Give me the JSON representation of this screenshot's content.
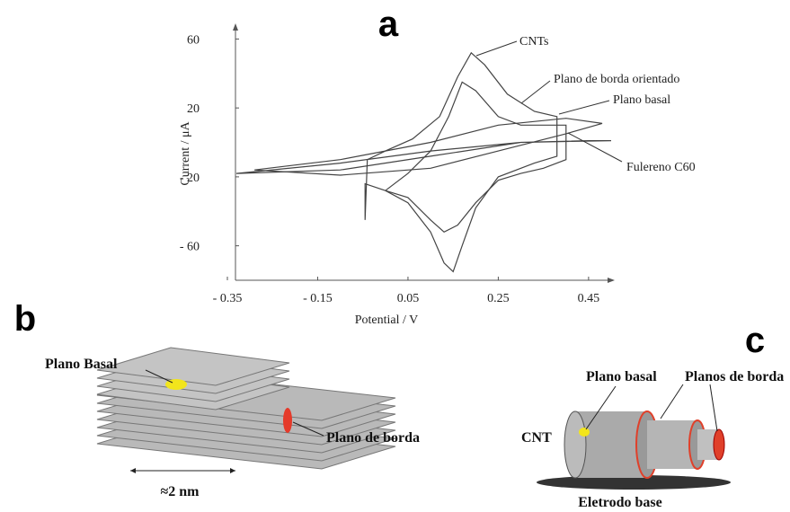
{
  "panel_labels": [
    "a",
    "b",
    "c"
  ],
  "chart_data": {
    "type": "line",
    "xlabel": "Potential / V",
    "ylabel": "Current / μA",
    "xlim": [
      -0.35,
      0.5
    ],
    "ylim": [
      -80,
      67
    ],
    "xticks": [
      {
        "value": -0.35,
        "label": "- 0.35"
      },
      {
        "value": -0.15,
        "label": "- 0.15"
      },
      0.05,
      0.25,
      0.45
    ],
    "yticks": [
      {
        "value": -60,
        "label": "- 60"
      },
      {
        "value": -20,
        "label": "- 20"
      },
      20,
      60
    ],
    "series": [
      {
        "name": "CNTs",
        "color": "#444444",
        "x": [
          -0.045,
          -0.04,
          0.0,
          0.06,
          0.12,
          0.16,
          0.19,
          0.22,
          0.27,
          0.33,
          0.38,
          0.38,
          0.33,
          0.25,
          0.2,
          0.17,
          0.15,
          0.13,
          0.1,
          0.05,
          0.0,
          -0.045,
          -0.045
        ],
        "values": [
          -45,
          -10,
          -5,
          2,
          15,
          38,
          52,
          45,
          28,
          18,
          15,
          -8,
          -12,
          -20,
          -38,
          -60,
          -75,
          -70,
          -52,
          -35,
          -28,
          -24,
          -45
        ]
      },
      {
        "name": "Plano de borda orientado",
        "color": "#444444",
        "x": [
          0.0,
          0.05,
          0.1,
          0.14,
          0.17,
          0.2,
          0.25,
          0.3,
          0.35,
          0.4,
          0.4,
          0.35,
          0.3,
          0.25,
          0.2,
          0.16,
          0.13,
          0.1,
          0.05,
          0.0
        ],
        "values": [
          -28,
          -18,
          -5,
          15,
          35,
          30,
          15,
          10,
          10,
          10,
          -10,
          -15,
          -18,
          -22,
          -35,
          -48,
          -52,
          -45,
          -32,
          -28
        ]
      },
      {
        "name": "Plano basal",
        "color": "#444444",
        "x": [
          -0.29,
          -0.1,
          0.1,
          0.25,
          0.4,
          0.48,
          0.4,
          0.25,
          0.1,
          -0.1,
          -0.29
        ],
        "values": [
          -16,
          -10,
          0,
          10,
          14,
          11,
          5,
          -5,
          -15,
          -19,
          -16
        ]
      },
      {
        "name": "Fulereno C60",
        "color": "#444444",
        "x": [
          -0.33,
          -0.1,
          0.1,
          0.3,
          0.45,
          0.5,
          0.3,
          0.1,
          -0.1,
          -0.33
        ],
        "values": [
          -18,
          -12,
          -5,
          0,
          1,
          1,
          0,
          -8,
          -16,
          -18
        ]
      }
    ]
  },
  "diagram_b": {
    "labels": [
      "Plano Basal",
      "Plano de borda",
      "≈2 nm"
    ]
  },
  "diagram_c": {
    "labels": [
      "CNT",
      "Plano basal",
      "Planos de borda",
      "Eletrodo base"
    ]
  }
}
